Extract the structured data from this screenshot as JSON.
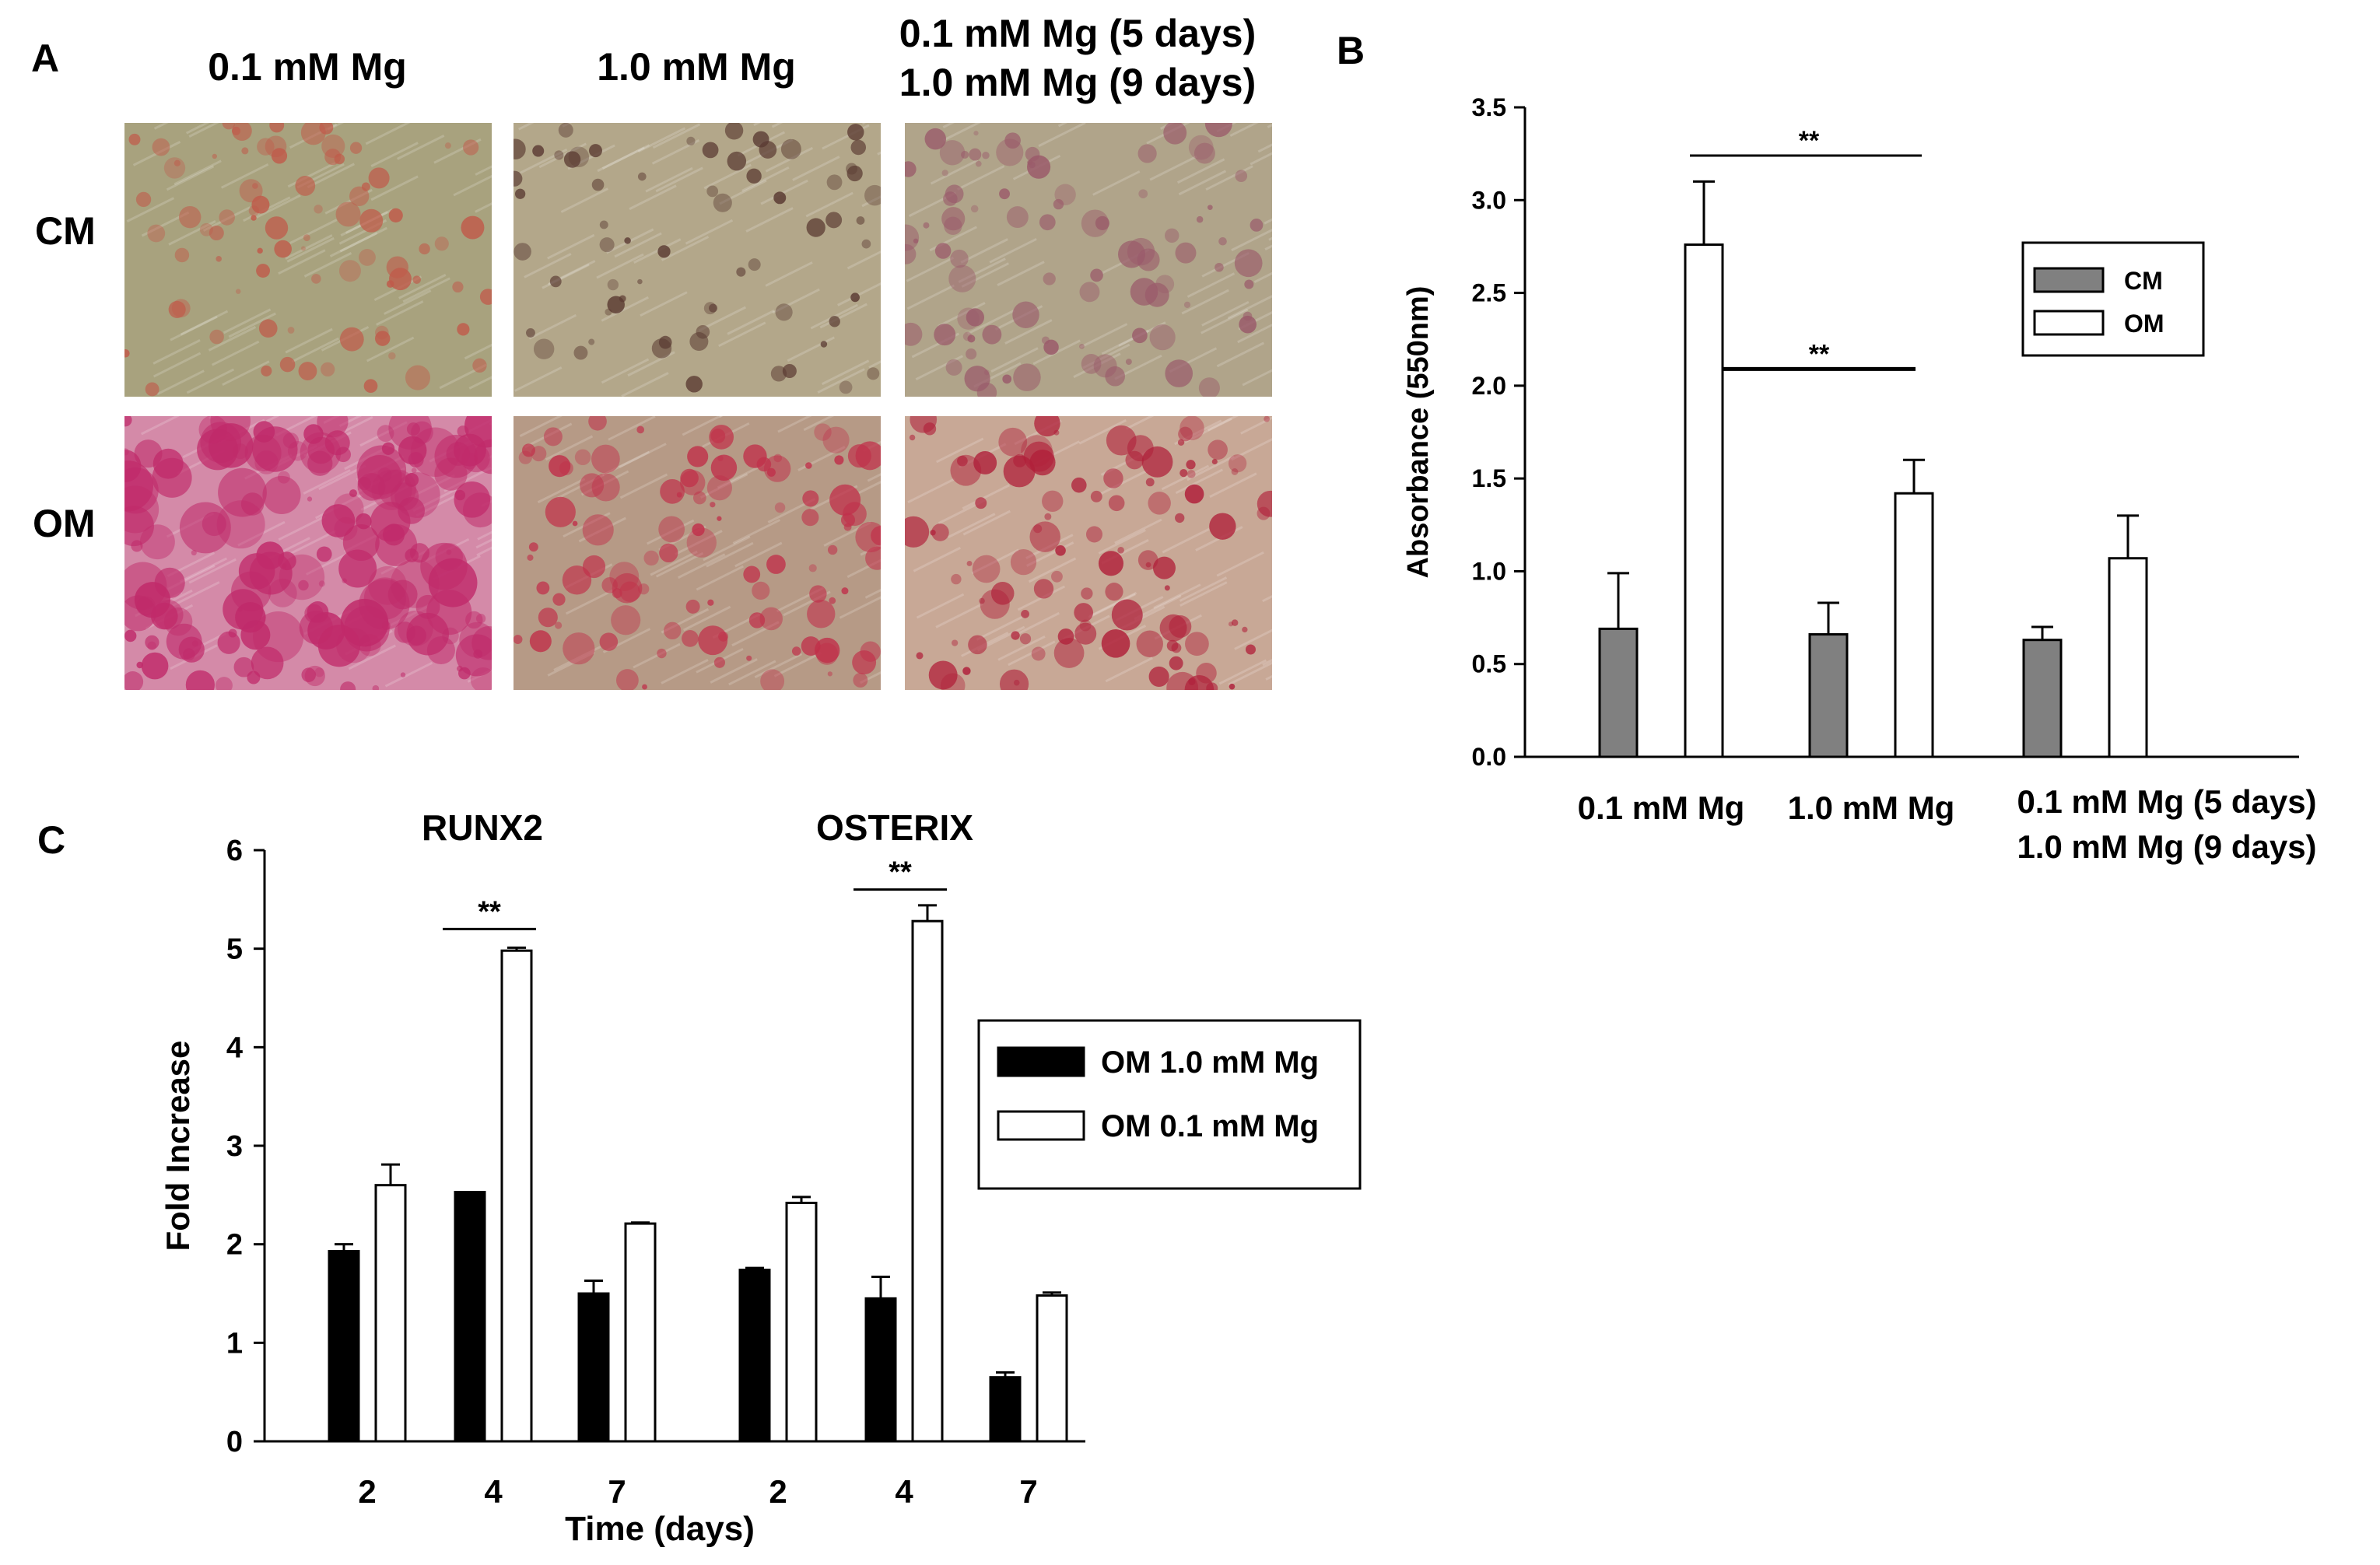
{
  "panel_a": {
    "letter": "A",
    "columns": [
      "0.1 mM Mg",
      "1.0 mM Mg",
      "0.1 mM Mg (5 days)\n1.0 mM Mg (9 days)"
    ],
    "rows": [
      "CM",
      "OM"
    ],
    "images": [
      {
        "row": "CM",
        "column": "0.1 mM Mg",
        "bg": "#a8a27e",
        "spot": "#c05a4a",
        "density": 0.25
      },
      {
        "row": "CM",
        "column": "1.0 mM Mg",
        "bg": "#b3a78a",
        "spot": "#5a3a32",
        "density": 0.15
      },
      {
        "row": "CM",
        "column": "0.1 mM Mg (5 days) 1.0 mM Mg (9 days)",
        "bg": "#b0a48a",
        "spot": "#9a5a6a",
        "density": 0.3
      },
      {
        "row": "OM",
        "column": "0.1 mM Mg",
        "bg": "#d48aa8",
        "spot": "#c02a6a",
        "density": 0.8
      },
      {
        "row": "OM",
        "column": "1.0 mM Mg",
        "bg": "#b69a86",
        "spot": "#c0304a",
        "density": 0.4
      },
      {
        "row": "OM",
        "column": "0.1 mM Mg (5 days) 1.0 mM Mg (9 days)",
        "bg": "#c8a896",
        "spot": "#b0203a",
        "density": 0.4
      }
    ]
  },
  "chart_data": [
    {
      "panel": "B",
      "type": "bar",
      "ylabel": "Absorbance (550nm)",
      "xlabel": "",
      "ylim": [
        0,
        3.5
      ],
      "yticks": [
        "0.0",
        "0.5",
        "1.0",
        "1.5",
        "2.0",
        "2.5",
        "3.0",
        "3.5"
      ],
      "categories": [
        "0.1 mM Mg",
        "1.0 mM Mg",
        "0.1 mM Mg (5 days)\n1.0 mM Mg (9 days)"
      ],
      "series": [
        {
          "name": "CM",
          "color": "#808080",
          "values": [
            0.69,
            0.66,
            0.63
          ],
          "errors": [
            0.3,
            0.17,
            0.07
          ]
        },
        {
          "name": "OM",
          "color": "#ffffff",
          "values": [
            2.76,
            1.42,
            1.07
          ],
          "errors": [
            0.34,
            0.18,
            0.23
          ]
        }
      ],
      "legend": "right",
      "significance": [
        {
          "label": "**",
          "y": 3.24
        },
        {
          "label": "**",
          "y": 2.09
        }
      ]
    },
    {
      "panel": "C",
      "type": "bar",
      "ylabel": "Fold Increase",
      "xlabel": "Time (days)",
      "ylim": [
        0,
        6
      ],
      "yticks": [
        "0",
        "1",
        "2",
        "3",
        "4",
        "5",
        "6"
      ],
      "groups": [
        {
          "title": "RUNX2",
          "categories": [
            "2",
            "4",
            "7"
          ],
          "series": [
            {
              "name": "OM 1.0 mM Mg",
              "values": [
                1.93,
                2.53,
                1.5
              ],
              "errors": [
                0.07,
                0.0,
                0.13
              ]
            },
            {
              "name": "OM 0.1 mM Mg",
              "values": [
                2.6,
                4.98,
                2.21
              ],
              "errors": [
                0.21,
                0.03,
                0.01
              ]
            }
          ],
          "significance": {
            "label": "**",
            "y": 5.2,
            "category": "4"
          }
        },
        {
          "title": "OSTERIX",
          "categories": [
            "2",
            "4",
            "7"
          ],
          "series": [
            {
              "name": "OM 1.0 mM Mg",
              "values": [
                1.74,
                1.45,
                0.65
              ],
              "errors": [
                0.02,
                0.22,
                0.05
              ]
            },
            {
              "name": "OM 0.1 mM Mg",
              "values": [
                2.42,
                5.28,
                1.48
              ],
              "errors": [
                0.06,
                0.16,
                0.03
              ]
            }
          ],
          "significance": {
            "label": "**",
            "y": 5.6,
            "category": "4"
          }
        }
      ],
      "series_colors": {
        "OM 1.0 mM Mg": "#000000",
        "OM 0.1 mM Mg": "#ffffff"
      },
      "legend": "center-right"
    }
  ],
  "labels": {
    "b_letter": "B",
    "c_letter": "C"
  }
}
